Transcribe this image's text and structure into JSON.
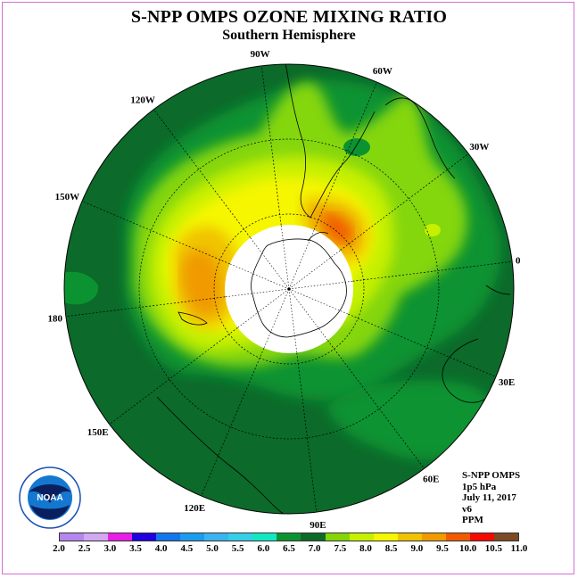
{
  "title": "S-NPP OMPS OZONE MIXING RATIO",
  "subtitle": "Southern Hemisphere",
  "longitude_labels": [
    "90W",
    "60W",
    "30W",
    "0",
    "30E",
    "60E",
    "90E",
    "120E",
    "150E",
    "180",
    "150W",
    "120W"
  ],
  "info": {
    "instrument": "S-NPP OMPS",
    "level": "1p5 hPa",
    "date": "July 11, 2017",
    "version": "v6",
    "units": "PPM"
  },
  "logo_text": "NOAA",
  "colorbar": {
    "ticks": [
      "2.0",
      "2.5",
      "3.0",
      "3.5",
      "4.0",
      "4.5",
      "5.0",
      "5.5",
      "6.0",
      "6.5",
      "7.0",
      "7.5",
      "8.0",
      "8.5",
      "9.0",
      "9.5",
      "10.0",
      "10.5",
      "11.0"
    ],
    "colors": [
      "#b586ee",
      "#d3a8f2",
      "#e81ee6",
      "#1f00e0",
      "#1476ec",
      "#1c9cee",
      "#3ab4ef",
      "#36cfe8",
      "#10e9c2",
      "#0b9331",
      "#0c6a2a",
      "#84d609",
      "#c6f000",
      "#f5f600",
      "#f0c300",
      "#f09a00",
      "#f15a00",
      "#f50a00",
      "#7c4a26"
    ]
  }
}
